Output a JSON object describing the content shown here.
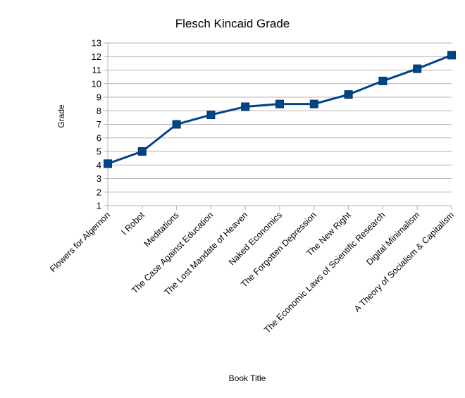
{
  "chart_data": {
    "type": "line",
    "title": "Flesch Kincaid Grade",
    "xlabel": "Book Title",
    "ylabel": "Grade",
    "ylim": [
      1,
      13
    ],
    "yticks": [
      1,
      2,
      3,
      4,
      5,
      6,
      7,
      8,
      9,
      10,
      11,
      12,
      13
    ],
    "grid": true,
    "legend": "none",
    "categories": [
      "Flowers for Algernon",
      "I Robot",
      "Meditations",
      "The Case Against Education",
      "The Lost Mandate of Heaven",
      "Naked Economics",
      "The Forgotten Depression",
      "The New Right",
      "The Economic Laws of Scientific Research",
      "Digital Minimalism",
      "A Theory of Socialism & Capitalism"
    ],
    "series": [
      {
        "values": [
          4.1,
          5.0,
          7.0,
          7.7,
          8.3,
          8.5,
          8.5,
          9.2,
          10.2,
          11.1,
          12.1
        ],
        "color": "#004586"
      }
    ]
  }
}
